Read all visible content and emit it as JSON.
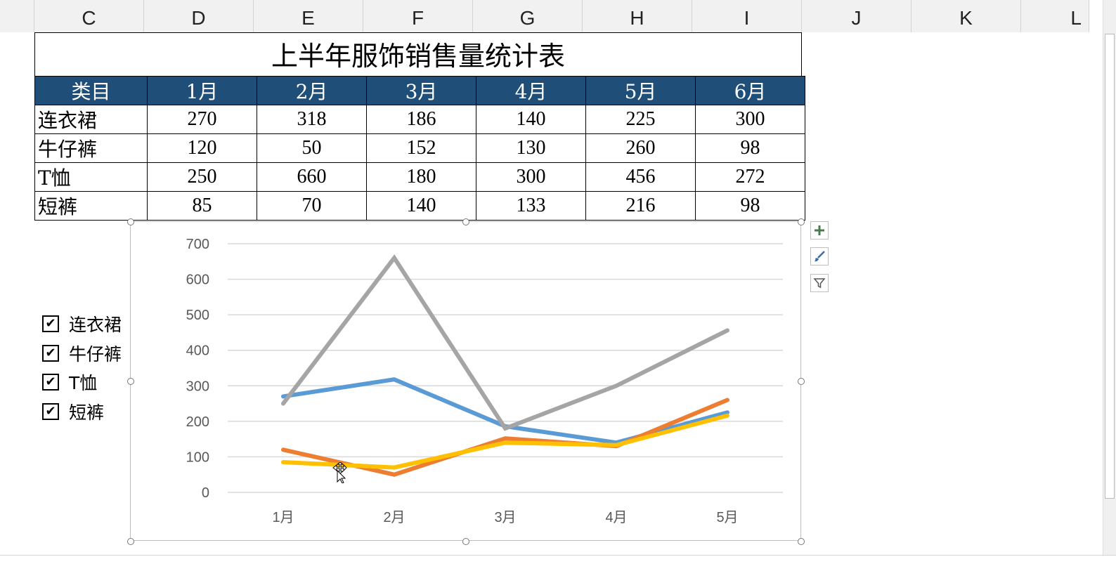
{
  "columns": [
    "C",
    "D",
    "E",
    "F",
    "G",
    "H",
    "I",
    "J",
    "K",
    "L"
  ],
  "table": {
    "title": "上半年服饰销售量统计表",
    "header": [
      "类目",
      "1月",
      "2月",
      "3月",
      "4月",
      "5月",
      "6月"
    ],
    "rows": [
      {
        "category": "连衣裙",
        "values": [
          "270",
          "318",
          "186",
          "140",
          "225",
          "300"
        ]
      },
      {
        "category": "牛仔裤",
        "values": [
          "120",
          "50",
          "152",
          "130",
          "260",
          "98"
        ]
      },
      {
        "category": "T恤",
        "values": [
          "250",
          "660",
          "180",
          "300",
          "456",
          "272"
        ]
      },
      {
        "category": "短裤",
        "values": [
          "85",
          "70",
          "140",
          "133",
          "216",
          "98"
        ]
      }
    ]
  },
  "checkboxes": [
    {
      "label": "连衣裙",
      "checked": true
    },
    {
      "label": "牛仔裤",
      "checked": true
    },
    {
      "label": "T恤",
      "checked": true
    },
    {
      "label": "短裤",
      "checked": true
    }
  ],
  "chart_buttons": [
    "plus-icon",
    "brush-icon",
    "filter-icon"
  ],
  "chart_data": {
    "type": "line",
    "categories": [
      "1月",
      "2月",
      "3月",
      "4月",
      "5月"
    ],
    "ylim": [
      0,
      700
    ],
    "yticks": [
      "0",
      "100",
      "200",
      "300",
      "400",
      "500",
      "600",
      "700"
    ],
    "grid": true,
    "series": [
      {
        "name": "连衣裙",
        "color": "#5b9bd5",
        "values": [
          270,
          318,
          186,
          140,
          225
        ]
      },
      {
        "name": "牛仔裤",
        "color": "#ed7d31",
        "values": [
          120,
          50,
          152,
          130,
          260
        ]
      },
      {
        "name": "T恤",
        "color": "#a5a5a5",
        "values": [
          250,
          660,
          180,
          300,
          456
        ]
      },
      {
        "name": "短裤",
        "color": "#ffc000",
        "values": [
          85,
          70,
          140,
          133,
          216
        ]
      }
    ]
  }
}
